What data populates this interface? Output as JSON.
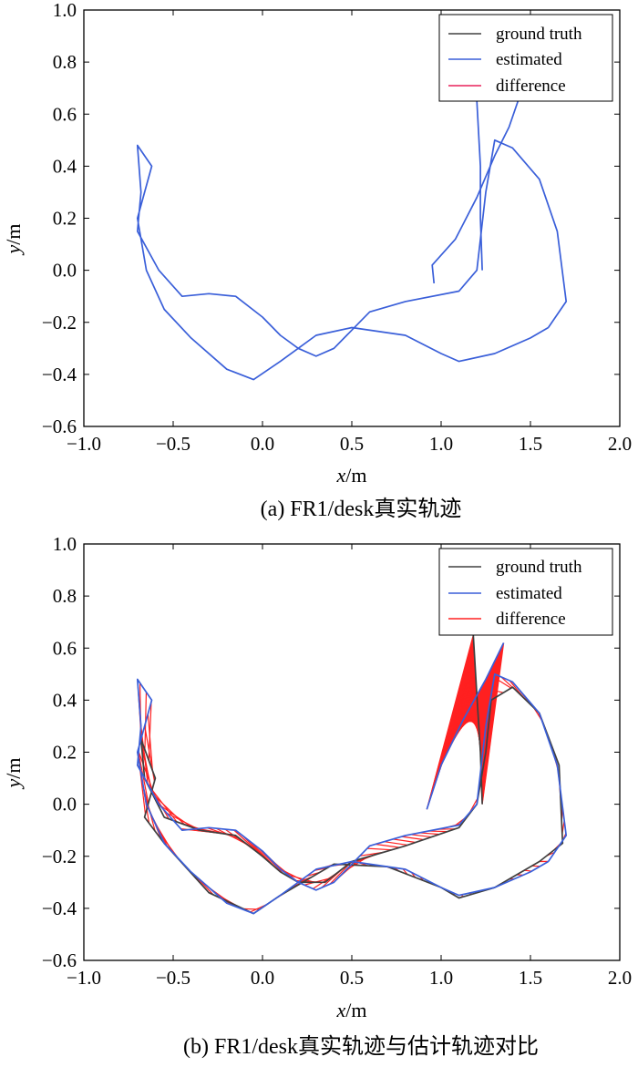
{
  "chart_data": [
    {
      "type": "line",
      "caption": "(a) FR1/desk真实轨迹",
      "xlabel_var": "x",
      "xlabel_unit": "/m",
      "ylabel_var": "y",
      "ylabel_unit": "/m",
      "xlim": [
        -1.0,
        2.0
      ],
      "ylim": [
        -0.6,
        1.0
      ],
      "x_ticks": [
        "−1.0",
        "−0.5",
        "0.0",
        "0.5",
        "1.0",
        "1.5",
        "2.0"
      ],
      "y_ticks": [
        "−0.6",
        "−0.4",
        "−0.2",
        "0.0",
        "0.2",
        "0.4",
        "0.6",
        "0.8",
        "1.0"
      ],
      "legend": {
        "position": "top-right",
        "entries": [
          {
            "label": "ground truth",
            "color": "#404040"
          },
          {
            "label": "estimated",
            "color": "#3a5fd9"
          },
          {
            "label": "difference",
            "color": "#e8205a"
          }
        ]
      },
      "series": [
        {
          "name": "estimated",
          "color": "#3a5fd9",
          "points": [
            [
              1.23,
              0.0
            ],
            [
              1.22,
              0.2
            ],
            [
              1.22,
              0.4
            ],
            [
              1.2,
              0.65
            ],
            [
              1.2,
              0.7
            ]
          ]
        },
        {
          "name": "estimated",
          "color": "#3a5fd9",
          "points": [
            [
              1.43,
              0.65
            ],
            [
              1.38,
              0.55
            ],
            [
              1.3,
              0.44
            ],
            [
              1.2,
              0.28
            ],
            [
              1.08,
              0.12
            ],
            [
              0.95,
              0.02
            ],
            [
              0.96,
              -0.05
            ]
          ]
        },
        {
          "name": "estimated",
          "color": "#3a5fd9",
          "points": [
            [
              1.6,
              -0.22
            ],
            [
              1.7,
              -0.12
            ],
            [
              1.65,
              0.15
            ],
            [
              1.55,
              0.35
            ],
            [
              1.4,
              0.47
            ],
            [
              1.3,
              0.5
            ],
            [
              1.25,
              0.3
            ],
            [
              1.2,
              0.0
            ],
            [
              1.1,
              -0.08
            ],
            [
              0.8,
              -0.12
            ],
            [
              0.6,
              -0.16
            ],
            [
              0.4,
              -0.3
            ],
            [
              0.3,
              -0.33
            ],
            [
              0.2,
              -0.3
            ],
            [
              0.1,
              -0.25
            ],
            [
              0.0,
              -0.18
            ],
            [
              -0.15,
              -0.1
            ],
            [
              -0.3,
              -0.09
            ],
            [
              -0.45,
              -0.1
            ],
            [
              -0.58,
              0.0
            ],
            [
              -0.7,
              0.15
            ],
            [
              -0.68,
              0.3
            ],
            [
              -0.7,
              0.48
            ],
            [
              -0.62,
              0.4
            ],
            [
              -0.7,
              0.2
            ],
            [
              -0.65,
              0.0
            ],
            [
              -0.55,
              -0.15
            ],
            [
              -0.4,
              -0.26
            ],
            [
              -0.2,
              -0.38
            ],
            [
              -0.05,
              -0.42
            ],
            [
              0.1,
              -0.35
            ],
            [
              0.3,
              -0.25
            ],
            [
              0.5,
              -0.22
            ],
            [
              0.8,
              -0.25
            ],
            [
              1.0,
              -0.32
            ],
            [
              1.1,
              -0.35
            ],
            [
              1.3,
              -0.32
            ],
            [
              1.5,
              -0.26
            ],
            [
              1.6,
              -0.22
            ]
          ]
        }
      ]
    },
    {
      "type": "line",
      "caption": "(b) FR1/desk真实轨迹与估计轨迹对比",
      "xlabel_var": "x",
      "xlabel_unit": "/m",
      "ylabel_var": "y",
      "ylabel_unit": "/m",
      "xlim": [
        -1.0,
        2.0
      ],
      "ylim": [
        -0.6,
        1.0
      ],
      "x_ticks": [
        "−1.0",
        "−0.5",
        "0.0",
        "0.5",
        "1.0",
        "1.5",
        "2.0"
      ],
      "y_ticks": [
        "−0.6",
        "−0.4",
        "−0.2",
        "0.0",
        "0.2",
        "0.4",
        "0.6",
        "0.8",
        "1.0"
      ],
      "legend": {
        "position": "top-right",
        "entries": [
          {
            "label": "ground truth",
            "color": "#404040"
          },
          {
            "label": "estimated",
            "color": "#3a5fd9"
          },
          {
            "label": "difference",
            "color": "#e8205a"
          }
        ]
      },
      "series": [
        {
          "name": "ground truth",
          "color": "#404040",
          "points": [
            [
              1.23,
              0.0
            ],
            [
              1.22,
              0.2
            ],
            [
              1.2,
              0.42
            ],
            [
              1.18,
              0.65
            ]
          ]
        },
        {
          "name": "ground truth",
          "color": "#404040",
          "points": [
            [
              1.55,
              -0.22
            ],
            [
              1.68,
              -0.15
            ],
            [
              1.66,
              0.15
            ],
            [
              1.55,
              0.35
            ],
            [
              1.4,
              0.45
            ],
            [
              1.28,
              0.4
            ],
            [
              1.25,
              0.2
            ],
            [
              1.2,
              0.0
            ],
            [
              1.1,
              -0.09
            ],
            [
              0.8,
              -0.16
            ],
            [
              0.5,
              -0.22
            ],
            [
              0.35,
              -0.3
            ],
            [
              0.2,
              -0.3
            ],
            [
              0.1,
              -0.26
            ],
            [
              0.0,
              -0.2
            ],
            [
              -0.15,
              -0.12
            ],
            [
              -0.35,
              -0.1
            ],
            [
              -0.55,
              -0.05
            ],
            [
              -0.66,
              0.1
            ],
            [
              -0.68,
              0.25
            ],
            [
              -0.6,
              0.1
            ],
            [
              -0.66,
              -0.05
            ],
            [
              -0.55,
              -0.15
            ],
            [
              -0.3,
              -0.34
            ],
            [
              -0.05,
              -0.42
            ],
            [
              0.1,
              -0.35
            ],
            [
              0.4,
              -0.23
            ],
            [
              0.7,
              -0.24
            ],
            [
              1.0,
              -0.32
            ],
            [
              1.1,
              -0.36
            ],
            [
              1.3,
              -0.32
            ],
            [
              1.55,
              -0.22
            ]
          ]
        },
        {
          "name": "estimated",
          "color": "#3a5fd9",
          "points": [
            [
              1.6,
              -0.22
            ],
            [
              1.7,
              -0.12
            ],
            [
              1.65,
              0.15
            ],
            [
              1.55,
              0.35
            ],
            [
              1.4,
              0.47
            ],
            [
              1.3,
              0.5
            ],
            [
              1.25,
              0.3
            ],
            [
              1.2,
              0.0
            ],
            [
              1.1,
              -0.08
            ],
            [
              0.8,
              -0.12
            ],
            [
              0.6,
              -0.16
            ],
            [
              0.4,
              -0.3
            ],
            [
              0.3,
              -0.33
            ],
            [
              0.2,
              -0.3
            ],
            [
              0.1,
              -0.25
            ],
            [
              0.0,
              -0.18
            ],
            [
              -0.15,
              -0.1
            ],
            [
              -0.3,
              -0.09
            ],
            [
              -0.45,
              -0.1
            ],
            [
              -0.58,
              0.0
            ],
            [
              -0.7,
              0.15
            ],
            [
              -0.68,
              0.3
            ],
            [
              -0.7,
              0.48
            ],
            [
              -0.62,
              0.4
            ],
            [
              -0.7,
              0.2
            ],
            [
              -0.65,
              0.0
            ],
            [
              -0.55,
              -0.15
            ],
            [
              -0.4,
              -0.26
            ],
            [
              -0.2,
              -0.38
            ],
            [
              -0.05,
              -0.42
            ],
            [
              0.1,
              -0.35
            ],
            [
              0.3,
              -0.25
            ],
            [
              0.5,
              -0.22
            ],
            [
              0.8,
              -0.25
            ],
            [
              1.0,
              -0.32
            ],
            [
              1.1,
              -0.35
            ],
            [
              1.3,
              -0.32
            ],
            [
              1.5,
              -0.26
            ],
            [
              1.6,
              -0.22
            ]
          ]
        },
        {
          "name": "estimated",
          "color": "#3a5fd9",
          "points": [
            [
              1.35,
              0.62
            ],
            [
              1.25,
              0.48
            ],
            [
              1.12,
              0.32
            ],
            [
              1.0,
              0.15
            ],
            [
              0.92,
              -0.02
            ]
          ]
        },
        {
          "name": "difference",
          "color": "#ff2020",
          "hatch_between": [
            2,
            1
          ]
        },
        {
          "name": "difference",
          "color": "#ff2020",
          "hatch_between": [
            3,
            0
          ]
        }
      ]
    }
  ]
}
